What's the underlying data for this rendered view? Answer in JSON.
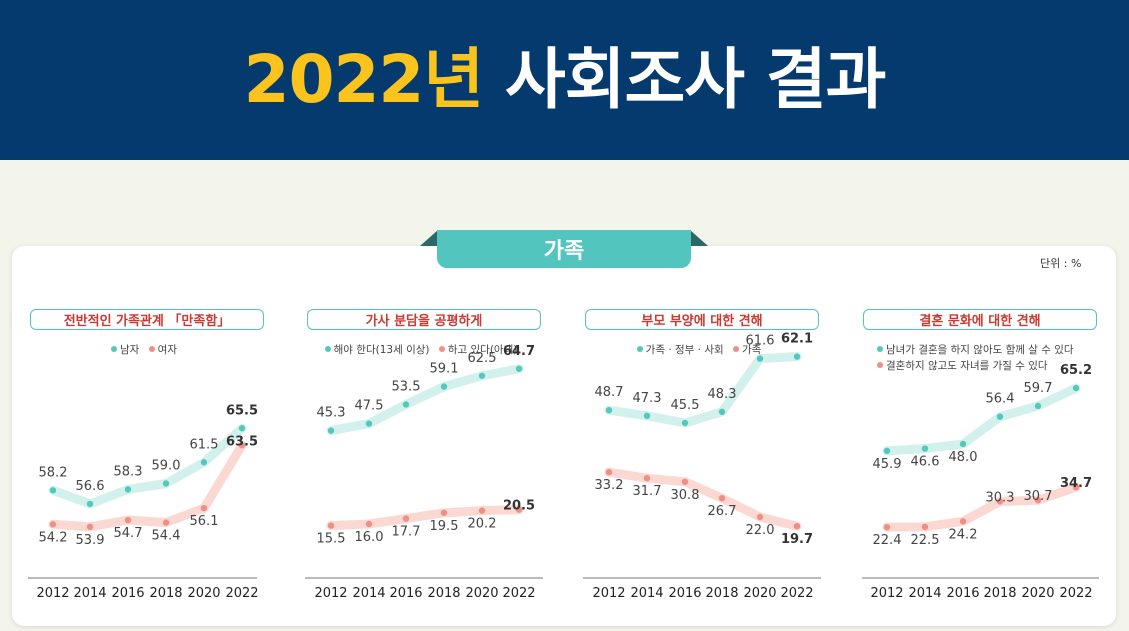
{
  "header": {
    "year_title": "2022년",
    "rest_title": "사회조사 결과"
  },
  "section": {
    "title": "가족",
    "unit": "단위 : %"
  },
  "colors": {
    "series_a": "#55c8bd",
    "series_b": "#f28f85",
    "line_a": "#d3f1ec",
    "line_b": "#fbd9d2"
  },
  "chart_data": [
    {
      "type": "line",
      "title": "전반적인 가족관계 「만족함」",
      "x": [
        "2012",
        "2014",
        "2016",
        "2018",
        "2020",
        "2022"
      ],
      "series": [
        {
          "name": "남자",
          "values": [
            58.2,
            56.6,
            58.3,
            59.0,
            61.5,
            65.5
          ]
        },
        {
          "name": "여자",
          "values": [
            54.2,
            53.9,
            54.7,
            54.4,
            56.1,
            63.5
          ]
        }
      ],
      "ylim": [
        50,
        70
      ],
      "legend": "top-center"
    },
    {
      "type": "line",
      "title": "가사 분담을 공평하게",
      "x": [
        "2012",
        "2014",
        "2016",
        "2018",
        "2020",
        "2022"
      ],
      "series": [
        {
          "name": "해야 한다(13세 이상)",
          "values": [
            45.3,
            47.5,
            53.5,
            59.1,
            62.5,
            64.7
          ]
        },
        {
          "name": "하고 있다(아내)",
          "values": [
            15.5,
            16.0,
            17.7,
            19.5,
            20.2,
            20.5
          ]
        }
      ],
      "ylim": [
        0,
        80
      ],
      "legend": "top-center"
    },
    {
      "type": "line",
      "title": "부모 부양에 대한 견해",
      "x": [
        "2012",
        "2014",
        "2016",
        "2018",
        "2020",
        "2022"
      ],
      "series": [
        {
          "name": "가족 · 정부 · 사회",
          "values": [
            48.7,
            47.3,
            45.5,
            48.3,
            61.6,
            62.1
          ]
        },
        {
          "name": "가족",
          "values": [
            33.2,
            31.7,
            30.8,
            26.7,
            22.0,
            19.7
          ]
        }
      ],
      "ylim": [
        0,
        70
      ],
      "legend": "top-center"
    },
    {
      "type": "line",
      "title": "결혼 문화에 대한 견해",
      "x": [
        "2012",
        "2014",
        "2016",
        "2018",
        "2020",
        "2022"
      ],
      "series": [
        {
          "name": "남녀가 결혼을 하지 않아도 함께 살 수 있다",
          "values": [
            45.9,
            46.6,
            48.0,
            56.4,
            59.7,
            65.2
          ]
        },
        {
          "name": "결혼하지 않고도 자녀를 가질 수 있다",
          "values": [
            22.4,
            22.5,
            24.2,
            30.3,
            30.7,
            34.7
          ]
        }
      ],
      "ylim": [
        0,
        80
      ],
      "legend": "top-left"
    }
  ]
}
